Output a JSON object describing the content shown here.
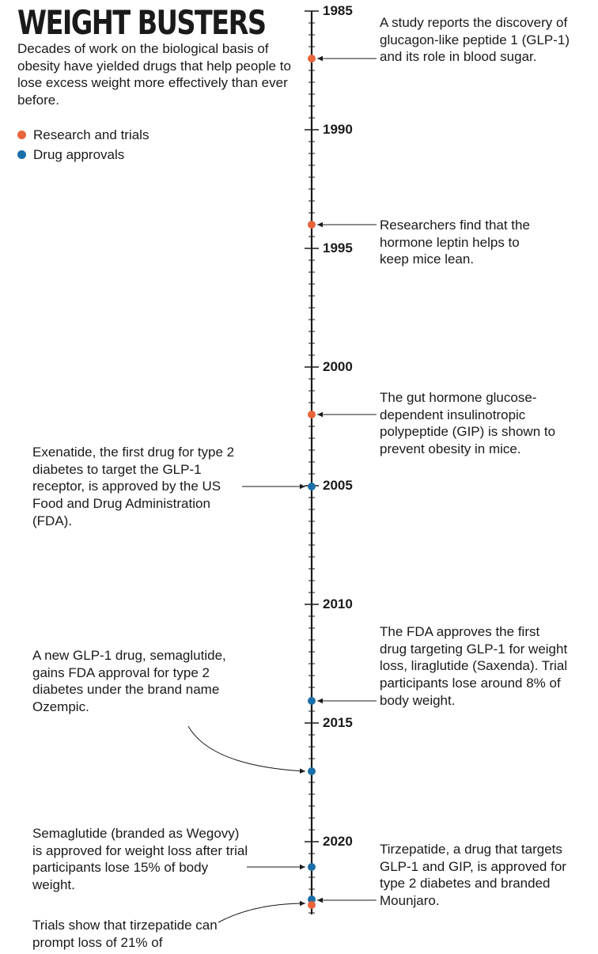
{
  "title": "WEIGHT BUSTERS",
  "intro": "Decades of work on the biological basis of obesity have yielded drugs that help people to lose excess weight more effectively than ever before.",
  "colors": {
    "research": "#e8643a",
    "approval": "#1b6fa8",
    "axis": "#1a1a1a"
  },
  "legend": [
    {
      "label": "Research and trials",
      "type": "research"
    },
    {
      "label": "Drug approvals",
      "type": "approval"
    }
  ],
  "axis": {
    "years": [
      "1985",
      "1990",
      "1995",
      "2000",
      "2005",
      "2010",
      "2015",
      "2020"
    ]
  },
  "events": [
    {
      "year": 1987,
      "type": "research",
      "side": "right",
      "text": "A study reports the discovery of glucagon-like peptide 1 (GLP-1) and its role in blood sugar."
    },
    {
      "year": 1994,
      "type": "research",
      "side": "right",
      "text": "Researchers find that the hormone leptin helps to keep mice lean."
    },
    {
      "year": 2002,
      "type": "research",
      "side": "right",
      "text": "The gut hormone glucose-dependent insulinotropic polypeptide (GIP) is shown to prevent obesity in mice."
    },
    {
      "year": 2005,
      "type": "approval",
      "side": "left",
      "text": "Exenatide, the first drug for type 2 diabetes to target the GLP-1 receptor, is approved by the US Food and Drug Administration (FDA)."
    },
    {
      "year": 2014,
      "type": "approval",
      "side": "right",
      "text": "The FDA approves the first drug targeting GLP-1 for weight loss, liraglutide (Saxenda). Trial participants lose around 8% of body weight."
    },
    {
      "year": 2017,
      "type": "approval",
      "side": "left",
      "text": "A new GLP-1 drug, semaglutide, gains FDA approval for type 2 diabetes under the brand name Ozempic."
    },
    {
      "year": 2021,
      "type": "approval",
      "side": "left",
      "text": "Semaglutide (branded as Wegovy) is approved for weight loss after trial participants lose 15% of body weight."
    },
    {
      "year": 2022,
      "type": "approval",
      "side": "right",
      "text": "Tirzepatide, a drug that targets GLP-1 and GIP, is approved for type 2 diabetes and branded Mounjaro."
    },
    {
      "year": 2022,
      "type": "research",
      "side": "left",
      "text": "Trials show that tirzepatide can prompt loss of 21% of"
    }
  ]
}
